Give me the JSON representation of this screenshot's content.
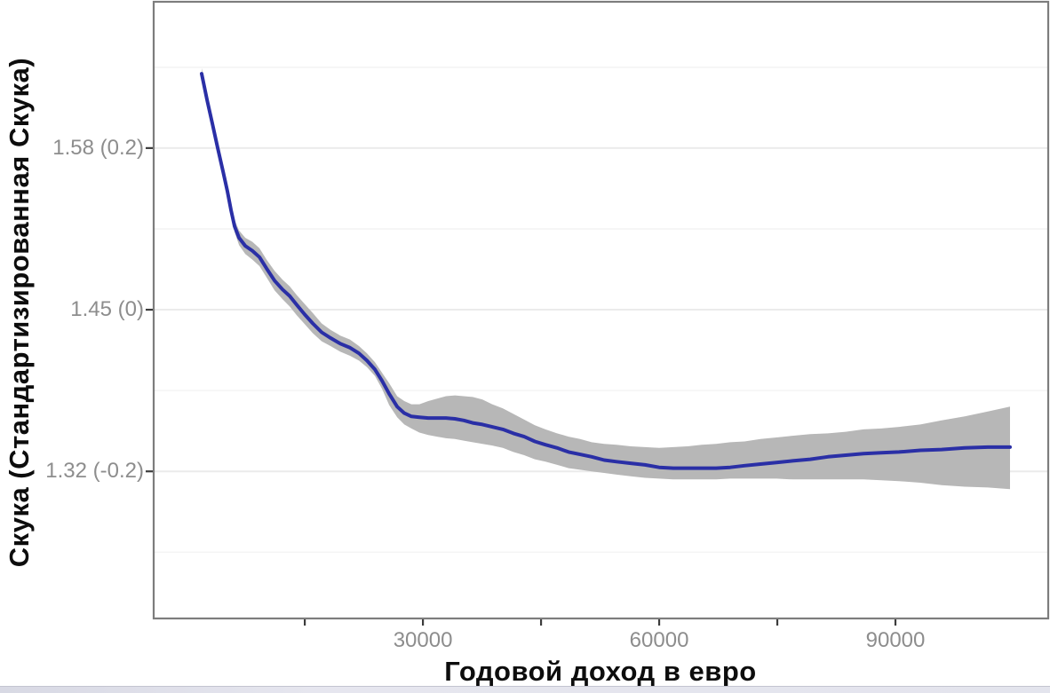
{
  "figure": {
    "kind": "ggplot-style smoothed regression with confidence ribbon",
    "background": "#ffffff"
  },
  "chart_data": {
    "type": "line",
    "title": "",
    "xlabel": "Годовой доход в евро",
    "ylabel": "Скука (Стандартизированная Скука)",
    "legend": "none",
    "grid": "horizontal only, faint",
    "xlim": [
      -4300,
      109400
    ],
    "ylim_std": [
      -0.382,
      0.381
    ],
    "ylim_raw": [
      1.2017,
      1.6977
    ],
    "x_ticks_labeled": {
      "values": [
        30000,
        60000,
        90000
      ],
      "labels": [
        "30000",
        "60000",
        "90000"
      ]
    },
    "x_ticks_unlabeled": [
      15000,
      45000,
      75000
    ],
    "y_ticks": [
      {
        "std": 0.2,
        "raw": 1.58,
        "label": "1.58 (0.2)"
      },
      {
        "std": 0.0,
        "raw": 1.45,
        "label": "1.45 (0)"
      },
      {
        "std": -0.2,
        "raw": 1.32,
        "label": "1.32 (-0.2)"
      }
    ],
    "y_minor_gridlines_std": [
      0.3,
      0.1,
      -0.1,
      -0.3
    ],
    "x": [
      1900,
      2600,
      3270,
      3950,
      4620,
      5190,
      5640,
      6090,
      6650,
      7440,
      8350,
      9250,
      10150,
      11170,
      12180,
      13080,
      13980,
      15000,
      16010,
      17140,
      18270,
      19510,
      20750,
      21880,
      22890,
      23910,
      24810,
      25710,
      26730,
      27630,
      28530,
      29550,
      30680,
      31800,
      32930,
      34060,
      35190,
      36320,
      37560,
      38800,
      40150,
      41500,
      42860,
      44210,
      45560,
      47030,
      48500,
      49960,
      51430,
      53010,
      54590,
      56390,
      58200,
      60000,
      61800,
      63610,
      65410,
      67220,
      69020,
      70830,
      72860,
      74890,
      76920,
      79170,
      81430,
      83680,
      85940,
      88200,
      90450,
      93160,
      95860,
      98800,
      101730,
      104550
    ],
    "series": [
      {
        "name": "smoothed_mean_std",
        "values": [
          0.292,
          0.259,
          0.23,
          0.2,
          0.171,
          0.146,
          0.123,
          0.103,
          0.089,
          0.079,
          0.073,
          0.065,
          0.051,
          0.036,
          0.025,
          0.017,
          0.006,
          -0.006,
          -0.017,
          -0.028,
          -0.035,
          -0.042,
          -0.047,
          -0.054,
          -0.063,
          -0.074,
          -0.088,
          -0.104,
          -0.12,
          -0.128,
          -0.132,
          -0.133,
          -0.134,
          -0.134,
          -0.134,
          -0.135,
          -0.137,
          -0.14,
          -0.142,
          -0.145,
          -0.148,
          -0.153,
          -0.157,
          -0.163,
          -0.167,
          -0.171,
          -0.176,
          -0.179,
          -0.182,
          -0.186,
          -0.188,
          -0.19,
          -0.192,
          -0.195,
          -0.196,
          -0.196,
          -0.196,
          -0.196,
          -0.195,
          -0.193,
          -0.191,
          -0.189,
          -0.187,
          -0.185,
          -0.182,
          -0.18,
          -0.178,
          -0.177,
          -0.176,
          -0.174,
          -0.173,
          -0.171,
          -0.17,
          -0.17
        ]
      },
      {
        "name": "ci_upper_std",
        "values": [
          0.299,
          0.266,
          0.236,
          0.207,
          0.178,
          0.153,
          0.13,
          0.111,
          0.098,
          0.089,
          0.084,
          0.076,
          0.062,
          0.048,
          0.037,
          0.029,
          0.018,
          0.007,
          -0.004,
          -0.017,
          -0.025,
          -0.032,
          -0.037,
          -0.045,
          -0.054,
          -0.065,
          -0.078,
          -0.091,
          -0.107,
          -0.113,
          -0.117,
          -0.117,
          -0.113,
          -0.11,
          -0.107,
          -0.106,
          -0.107,
          -0.108,
          -0.111,
          -0.117,
          -0.122,
          -0.129,
          -0.136,
          -0.143,
          -0.148,
          -0.153,
          -0.157,
          -0.16,
          -0.164,
          -0.166,
          -0.167,
          -0.169,
          -0.17,
          -0.171,
          -0.17,
          -0.169,
          -0.167,
          -0.166,
          -0.164,
          -0.163,
          -0.16,
          -0.158,
          -0.156,
          -0.154,
          -0.153,
          -0.151,
          -0.148,
          -0.147,
          -0.145,
          -0.142,
          -0.137,
          -0.132,
          -0.126,
          -0.12
        ]
      },
      {
        "name": "ci_lower_std",
        "values": [
          0.286,
          0.253,
          0.223,
          0.193,
          0.165,
          0.14,
          0.117,
          0.096,
          0.08,
          0.069,
          0.062,
          0.054,
          0.04,
          0.024,
          0.013,
          0.004,
          -0.007,
          -0.018,
          -0.029,
          -0.039,
          -0.045,
          -0.052,
          -0.057,
          -0.063,
          -0.071,
          -0.082,
          -0.098,
          -0.118,
          -0.133,
          -0.142,
          -0.147,
          -0.152,
          -0.155,
          -0.157,
          -0.159,
          -0.16,
          -0.162,
          -0.164,
          -0.166,
          -0.168,
          -0.171,
          -0.176,
          -0.18,
          -0.185,
          -0.188,
          -0.192,
          -0.196,
          -0.198,
          -0.2,
          -0.202,
          -0.204,
          -0.206,
          -0.208,
          -0.209,
          -0.21,
          -0.21,
          -0.21,
          -0.21,
          -0.209,
          -0.209,
          -0.209,
          -0.209,
          -0.21,
          -0.21,
          -0.21,
          -0.21,
          -0.21,
          -0.211,
          -0.212,
          -0.214,
          -0.217,
          -0.219,
          -0.22,
          -0.222
        ]
      }
    ]
  },
  "colors": {
    "line_blue": "#2a2fa6",
    "ribbon_gray": "#b7b7b7",
    "grid_major": "#ebebeb",
    "grid_minor": "#f4f4f4",
    "panel_border": "#7d7d7d",
    "tick_mark": "#3c3c3c",
    "tick_label": "#8d8d8d",
    "axis_title": "#0d0d0d",
    "bottom_strip": "#e0e1ea"
  }
}
